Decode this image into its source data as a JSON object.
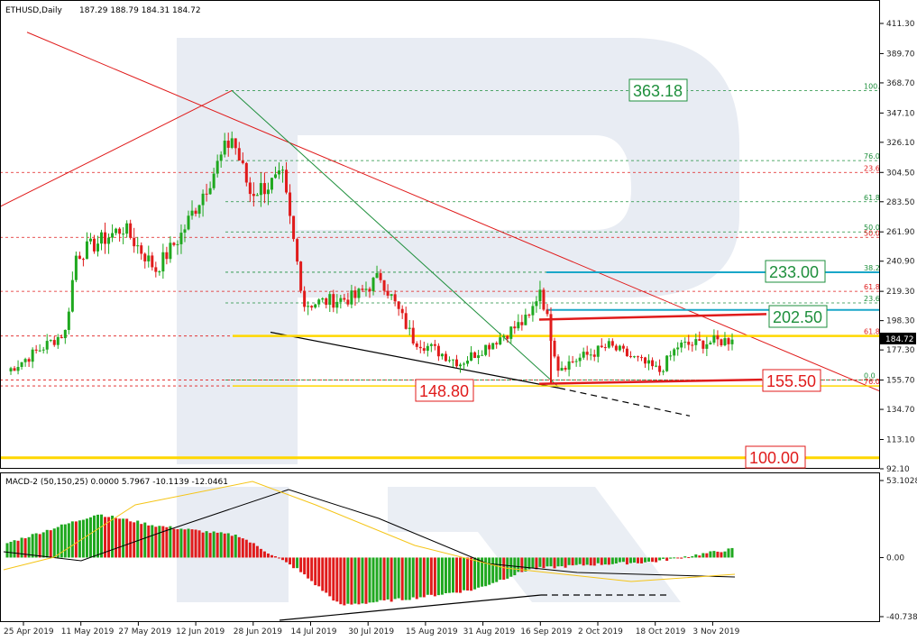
{
  "header": {
    "symbol": "ETHUSD,Daily",
    "ohlc": "187.29 188.79 184.31 184.72"
  },
  "macd_header": "MACD-2 (50,150,25) 0.0000 5.7967 -10.1139 -12.0461",
  "price_axis": {
    "ticks": [
      411.3,
      389.7,
      368.7,
      347.1,
      326.1,
      304.5,
      283.5,
      261.9,
      240.9,
      219.3,
      198.3,
      177.3,
      155.7,
      134.7,
      113.1,
      92.1
    ],
    "current": "184.72"
  },
  "macd_axis": {
    "ticks": [
      "53.1028",
      "0.00",
      "-40.7385"
    ]
  },
  "time_axis": [
    "25 Apr 2019",
    "11 May 2019",
    "27 May 2019",
    "12 Jun 2019",
    "28 Jun 2019",
    "14 Jul 2019",
    "30 Jul 2019",
    "15 Aug 2019",
    "31 Aug 2019",
    "16 Sep 2019",
    "2 Oct 2019",
    "18 Oct 2019",
    "3 Nov 2019"
  ],
  "levels": {
    "l363": "363.18",
    "l233": "233.00",
    "l2025": "202.50",
    "l1555": "155.50",
    "l1488": "148.80",
    "l100": "100.00"
  },
  "fib_right": [
    "100.0",
    "76.0",
    "61.8",
    "50.0",
    "38.2",
    "23.6",
    "0.0"
  ],
  "fib_left": [
    "23.6",
    "50.0",
    "61.8",
    "76.0"
  ],
  "colors": {
    "bull": "#1fa81f",
    "bear": "#e01b1b",
    "signal": "#f5c518",
    "level_yellow": "#ffd700",
    "level_blue": "#1aa7c9",
    "green_box": "#1e8f3c",
    "red_box": "#e01b1b"
  },
  "chart_data": [
    {
      "type": "candlestick",
      "title": "ETHUSD,Daily",
      "x_range": [
        "2019-04-25",
        "2019-11-11"
      ],
      "ylim": [
        92.1,
        411.3
      ],
      "key_points": [
        {
          "date": "2019-04-25",
          "close": 162
        },
        {
          "date": "2019-05-11",
          "close": 190
        },
        {
          "date": "2019-05-14",
          "close": 245
        },
        {
          "date": "2019-05-27",
          "close": 265
        },
        {
          "date": "2019-06-05",
          "close": 235
        },
        {
          "date": "2019-06-12",
          "close": 260
        },
        {
          "date": "2019-06-26",
          "close": 330
        },
        {
          "date": "2019-07-01",
          "close": 290
        },
        {
          "date": "2019-07-10",
          "close": 300
        },
        {
          "date": "2019-07-16",
          "close": 210
        },
        {
          "date": "2019-07-30",
          "close": 215
        },
        {
          "date": "2019-08-06",
          "close": 230
        },
        {
          "date": "2019-08-15",
          "close": 185
        },
        {
          "date": "2019-08-28",
          "close": 168
        },
        {
          "date": "2019-09-16",
          "close": 200
        },
        {
          "date": "2019-09-19",
          "close": 222
        },
        {
          "date": "2019-09-24",
          "close": 165
        },
        {
          "date": "2019-10-08",
          "close": 180
        },
        {
          "date": "2019-10-22",
          "close": 162
        },
        {
          "date": "2019-10-27",
          "close": 180
        },
        {
          "date": "2019-11-11",
          "close": 184.72
        }
      ],
      "horizontal_levels": [
        363.18,
        233.0,
        202.5,
        155.5,
        148.8,
        100.0
      ]
    },
    {
      "type": "bar",
      "title": "MACD-2 (50,150,25)",
      "ylim": [
        -40.7385,
        53.1028
      ],
      "values_summary": [
        {
          "date": "2019-04-25",
          "value": 10
        },
        {
          "date": "2019-05-20",
          "value": 30
        },
        {
          "date": "2019-06-05",
          "value": 22
        },
        {
          "date": "2019-06-28",
          "value": 15
        },
        {
          "date": "2019-07-14",
          "value": -8
        },
        {
          "date": "2019-07-26",
          "value": -33
        },
        {
          "date": "2019-08-15",
          "value": -28
        },
        {
          "date": "2019-09-01",
          "value": -22
        },
        {
          "date": "2019-09-16",
          "value": -8
        },
        {
          "date": "2019-10-02",
          "value": -5
        },
        {
          "date": "2019-10-20",
          "value": -3
        },
        {
          "date": "2019-11-11",
          "value": 5.7967
        }
      ]
    }
  ]
}
